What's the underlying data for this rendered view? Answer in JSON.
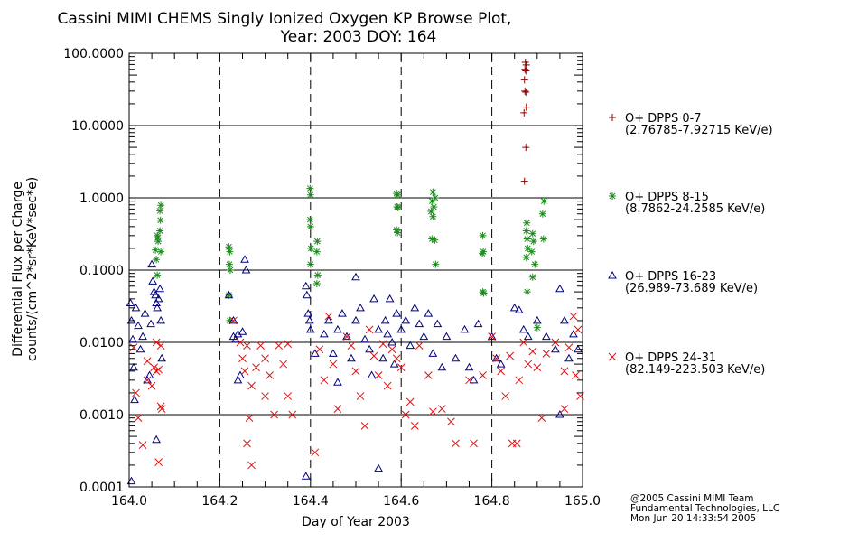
{
  "chart_data": {
    "type": "scatter",
    "title": [
      "Cassini MIMI CHEMS Singly Ionized Oxygen KP Browse Plot,",
      "Year: 2003 DOY: 164"
    ],
    "xlabel": "Day of Year 2003",
    "ylabel": [
      "Differential Flux per Charge",
      "counts/(cm^2*sr*KeV*sec*e)"
    ],
    "xlim": [
      164.0,
      165.0
    ],
    "ylim": [
      0.0001,
      100
    ],
    "yscale": "log",
    "xticks": [
      "164.0",
      "164.2",
      "164.4",
      "164.6",
      "164.8",
      "165.0"
    ],
    "yticks": [
      "100.0000",
      "10.0000",
      "1.0000",
      "0.1000",
      "0.0100",
      "0.0010",
      "0.0001"
    ],
    "vertical_dashed_lines": [
      164.2,
      164.4,
      164.6,
      164.8
    ],
    "grid": "horizontal at decades",
    "legend_position": "right",
    "series": [
      {
        "name": "O+ DPPS 0-7",
        "range": "(2.76785-7.92715 KeV/e)",
        "marker": "plus",
        "color": "#8b0000",
        "points": [
          [
            164.874,
            75
          ],
          [
            164.876,
            69
          ],
          [
            164.873,
            60
          ],
          [
            164.875,
            57
          ],
          [
            164.872,
            43
          ],
          [
            164.873,
            30
          ],
          [
            164.875,
            29
          ],
          [
            164.876,
            18
          ],
          [
            164.871,
            15
          ],
          [
            164.875,
            5
          ],
          [
            164.872,
            1.7
          ]
        ]
      },
      {
        "name": "O+ DPPS 8-15",
        "range": "(8.7862-24.2585 KeV/e)",
        "marker": "asterisk",
        "color": "#1f8a1f",
        "points": [
          [
            164.07,
            0.79
          ],
          [
            164.068,
            0.66
          ],
          [
            164.069,
            0.49
          ],
          [
            164.068,
            0.35
          ],
          [
            164.062,
            0.3
          ],
          [
            164.063,
            0.28
          ],
          [
            164.064,
            0.25
          ],
          [
            164.058,
            0.19
          ],
          [
            164.07,
            0.18
          ],
          [
            164.06,
            0.14
          ],
          [
            164.062,
            0.085
          ],
          [
            164.22,
            0.21
          ],
          [
            164.222,
            0.18
          ],
          [
            164.221,
            0.12
          ],
          [
            164.223,
            0.1
          ],
          [
            164.22,
            0.045
          ],
          [
            164.222,
            0.02
          ],
          [
            164.399,
            1.35
          ],
          [
            164.4,
            1.1
          ],
          [
            164.399,
            0.5
          ],
          [
            164.4,
            0.4
          ],
          [
            164.401,
            0.2
          ],
          [
            164.4,
            0.12
          ],
          [
            164.415,
            0.25
          ],
          [
            164.414,
            0.18
          ],
          [
            164.416,
            0.085
          ],
          [
            164.414,
            0.065
          ],
          [
            164.59,
            1.15
          ],
          [
            164.592,
            1.1
          ],
          [
            164.591,
            0.75
          ],
          [
            164.593,
            0.73
          ],
          [
            164.59,
            0.36
          ],
          [
            164.592,
            0.33
          ],
          [
            164.67,
            1.2
          ],
          [
            164.675,
            1.0
          ],
          [
            164.668,
            0.9
          ],
          [
            164.672,
            0.75
          ],
          [
            164.666,
            0.65
          ],
          [
            164.67,
            0.55
          ],
          [
            164.668,
            0.27
          ],
          [
            164.674,
            0.26
          ],
          [
            164.676,
            0.12
          ],
          [
            164.78,
            0.3
          ],
          [
            164.781,
            0.18
          ],
          [
            164.779,
            0.17
          ],
          [
            164.78,
            0.05
          ],
          [
            164.782,
            0.048
          ],
          [
            164.877,
            0.45
          ],
          [
            164.876,
            0.35
          ],
          [
            164.878,
            0.27
          ],
          [
            164.879,
            0.2
          ],
          [
            164.876,
            0.15
          ],
          [
            164.89,
            0.32
          ],
          [
            164.892,
            0.25
          ],
          [
            164.888,
            0.18
          ],
          [
            164.895,
            0.12
          ],
          [
            164.89,
            0.08
          ],
          [
            164.915,
            0.9
          ],
          [
            164.912,
            0.6
          ],
          [
            164.914,
            0.27
          ],
          [
            164.9,
            0.016
          ],
          [
            164.878,
            0.05
          ]
        ]
      },
      {
        "name": "O+ DPPS 16-23",
        "range": "(26.989-73.689 KeV/e)",
        "marker": "triangle",
        "color": "#000080",
        "points": [
          [
            164.003,
            0.035
          ],
          [
            164.005,
            0.02
          ],
          [
            164.008,
            0.011
          ],
          [
            164.01,
            0.0045
          ],
          [
            164.012,
            0.0016
          ],
          [
            164.015,
            0.03
          ],
          [
            164.02,
            0.017
          ],
          [
            164.025,
            0.008
          ],
          [
            164.03,
            0.012
          ],
          [
            164.035,
            0.025
          ],
          [
            164.04,
            0.003
          ],
          [
            164.05,
            0.12
          ],
          [
            164.052,
            0.07
          ],
          [
            164.055,
            0.05
          ],
          [
            164.058,
            0.045
          ],
          [
            164.06,
            0.035
          ],
          [
            164.062,
            0.03
          ],
          [
            164.065,
            0.04
          ],
          [
            164.068,
            0.055
          ],
          [
            164.07,
            0.02
          ],
          [
            164.072,
            0.006
          ],
          [
            164.06,
            0.00045
          ],
          [
            164.005,
            0.00012
          ],
          [
            164.045,
            0.0035
          ],
          [
            164.048,
            0.018
          ],
          [
            164.22,
            0.045
          ],
          [
            164.23,
            0.02
          ],
          [
            164.24,
            0.013
          ],
          [
            164.25,
            0.014
          ],
          [
            164.255,
            0.14
          ],
          [
            164.258,
            0.1
          ],
          [
            164.245,
            0.0035
          ],
          [
            164.24,
            0.003
          ],
          [
            164.235,
            0.011
          ],
          [
            164.23,
            0.012
          ],
          [
            164.39,
            0.06
          ],
          [
            164.392,
            0.045
          ],
          [
            164.395,
            0.025
          ],
          [
            164.398,
            0.02
          ],
          [
            164.4,
            0.015
          ],
          [
            164.39,
            0.00014
          ],
          [
            164.41,
            0.007
          ],
          [
            164.43,
            0.013
          ],
          [
            164.44,
            0.02
          ],
          [
            164.45,
            0.007
          ],
          [
            164.46,
            0.015
          ],
          [
            164.47,
            0.025
          ],
          [
            164.48,
            0.012
          ],
          [
            164.49,
            0.006
          ],
          [
            164.5,
            0.02
          ],
          [
            164.51,
            0.03
          ],
          [
            164.52,
            0.011
          ],
          [
            164.53,
            0.008
          ],
          [
            164.535,
            0.0035
          ],
          [
            164.54,
            0.04
          ],
          [
            164.55,
            0.015
          ],
          [
            164.56,
            0.006
          ],
          [
            164.565,
            0.02
          ],
          [
            164.57,
            0.013
          ],
          [
            164.575,
            0.04
          ],
          [
            164.58,
            0.01
          ],
          [
            164.585,
            0.005
          ],
          [
            164.59,
            0.025
          ],
          [
            164.6,
            0.015
          ],
          [
            164.61,
            0.02
          ],
          [
            164.62,
            0.009
          ],
          [
            164.63,
            0.03
          ],
          [
            164.64,
            0.018
          ],
          [
            164.65,
            0.012
          ],
          [
            164.66,
            0.025
          ],
          [
            164.67,
            0.007
          ],
          [
            164.68,
            0.018
          ],
          [
            164.69,
            0.0045
          ],
          [
            164.7,
            0.012
          ],
          [
            164.72,
            0.006
          ],
          [
            164.74,
            0.015
          ],
          [
            164.75,
            0.0045
          ],
          [
            164.76,
            0.003
          ],
          [
            164.77,
            0.018
          ],
          [
            164.8,
            0.012
          ],
          [
            164.81,
            0.006
          ],
          [
            164.82,
            0.005
          ],
          [
            164.85,
            0.03
          ],
          [
            164.86,
            0.028
          ],
          [
            164.87,
            0.015
          ],
          [
            164.88,
            0.012
          ],
          [
            164.9,
            0.02
          ],
          [
            164.92,
            0.012
          ],
          [
            164.94,
            0.008
          ],
          [
            164.95,
            0.055
          ],
          [
            164.96,
            0.02
          ],
          [
            164.97,
            0.006
          ],
          [
            164.98,
            0.013
          ],
          [
            164.99,
            0.008
          ],
          [
            164.5,
            0.08
          ],
          [
            164.55,
            0.00018
          ],
          [
            164.46,
            0.0028
          ],
          [
            164.95,
            0.001
          ]
        ]
      },
      {
        "name": "O+ DPPS 24-31",
        "range": "(82.149-223.503 KeV/e)",
        "marker": "cross",
        "color": "#e01010",
        "points": [
          [
            164.01,
            0.0085
          ],
          [
            164.015,
            0.002
          ],
          [
            164.02,
            0.0009
          ],
          [
            164.03,
            0.00038
          ],
          [
            164.04,
            0.0055
          ],
          [
            164.055,
            0.0045
          ],
          [
            164.06,
            0.004
          ],
          [
            164.065,
            0.0042
          ],
          [
            164.07,
            0.0013
          ],
          [
            164.072,
            0.0012
          ],
          [
            164.065,
            0.00022
          ],
          [
            164.06,
            0.01
          ],
          [
            164.07,
            0.009
          ],
          [
            164.05,
            0.0025
          ],
          [
            164.04,
            0.003
          ],
          [
            164.23,
            0.02
          ],
          [
            164.245,
            0.01
          ],
          [
            164.25,
            0.006
          ],
          [
            164.255,
            0.004
          ],
          [
            164.26,
            0.009
          ],
          [
            164.27,
            0.0025
          ],
          [
            164.265,
            0.0009
          ],
          [
            164.26,
            0.0004
          ],
          [
            164.27,
            0.0002
          ],
          [
            164.29,
            0.009
          ],
          [
            164.3,
            0.006
          ],
          [
            164.31,
            0.0035
          ],
          [
            164.3,
            0.0018
          ],
          [
            164.32,
            0.001
          ],
          [
            164.33,
            0.009
          ],
          [
            164.34,
            0.005
          ],
          [
            164.35,
            0.0018
          ],
          [
            164.36,
            0.001
          ],
          [
            164.28,
            0.0045
          ],
          [
            164.35,
            0.0095
          ],
          [
            164.41,
            0.0003
          ],
          [
            164.42,
            0.008
          ],
          [
            164.43,
            0.003
          ],
          [
            164.44,
            0.023
          ],
          [
            164.45,
            0.005
          ],
          [
            164.46,
            0.0012
          ],
          [
            164.48,
            0.012
          ],
          [
            164.49,
            0.009
          ],
          [
            164.5,
            0.004
          ],
          [
            164.51,
            0.0018
          ],
          [
            164.52,
            0.0007
          ],
          [
            164.53,
            0.015
          ],
          [
            164.54,
            0.0065
          ],
          [
            164.55,
            0.0035
          ],
          [
            164.56,
            0.0095
          ],
          [
            164.57,
            0.0025
          ],
          [
            164.58,
            0.008
          ],
          [
            164.59,
            0.006
          ],
          [
            164.6,
            0.0045
          ],
          [
            164.61,
            0.001
          ],
          [
            164.62,
            0.0015
          ],
          [
            164.63,
            0.0007
          ],
          [
            164.64,
            0.009
          ],
          [
            164.66,
            0.0035
          ],
          [
            164.67,
            0.0011
          ],
          [
            164.69,
            0.0012
          ],
          [
            164.71,
            0.0008
          ],
          [
            164.72,
            0.0004
          ],
          [
            164.75,
            0.003
          ],
          [
            164.76,
            0.0004
          ],
          [
            164.78,
            0.0035
          ],
          [
            164.8,
            0.012
          ],
          [
            164.81,
            0.006
          ],
          [
            164.82,
            0.004
          ],
          [
            164.83,
            0.0018
          ],
          [
            164.84,
            0.0065
          ],
          [
            164.845,
            0.0004
          ],
          [
            164.855,
            0.0004
          ],
          [
            164.86,
            0.003
          ],
          [
            164.87,
            0.01
          ],
          [
            164.88,
            0.005
          ],
          [
            164.89,
            0.0075
          ],
          [
            164.9,
            0.0045
          ],
          [
            164.91,
            0.0009
          ],
          [
            164.92,
            0.007
          ],
          [
            164.94,
            0.01
          ],
          [
            164.96,
            0.004
          ],
          [
            164.97,
            0.0085
          ],
          [
            164.98,
            0.023
          ],
          [
            164.99,
            0.015
          ],
          [
            164.995,
            0.0018
          ],
          [
            164.985,
            0.0035
          ],
          [
            164.96,
            0.0012
          ]
        ]
      }
    ]
  },
  "footer": [
    "@2005 Cassini MIMI Team",
    "Fundamental Technologies, LLC",
    "Mon Jun 20 14:33:54 2005"
  ]
}
